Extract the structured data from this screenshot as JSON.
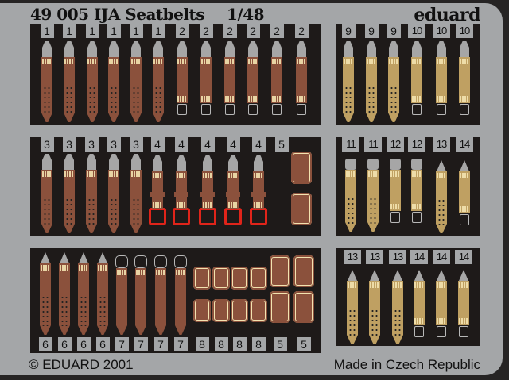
{
  "header": {
    "title": "49 005 IJA Seatbelts",
    "scale": "1/48",
    "brand": "eduard"
  },
  "footer": {
    "copyright": "© EDUARD 2001",
    "origin": "Made in Czech Republic"
  },
  "colors": {
    "plate": "#a4a6a8",
    "panel": "#1e1a19",
    "brown": "#8b513c",
    "tan": "#bfa062",
    "stitch": "#f3e3b0",
    "highlight": "#e0241a"
  },
  "panels": [
    {
      "labels": [
        "1",
        "1",
        "1",
        "1",
        "1",
        "1",
        "2",
        "2",
        "2",
        "2",
        "2",
        "2"
      ]
    },
    {
      "labels": [
        "9",
        "9",
        "9",
        "10",
        "10",
        "10"
      ]
    },
    {
      "labels": [
        "3",
        "3",
        "3",
        "3",
        "3",
        "4",
        "4",
        "4",
        "4",
        "4",
        "5"
      ]
    },
    {
      "labels": [
        "11",
        "11",
        "12",
        "12",
        "13",
        "14"
      ]
    },
    {
      "labels": [
        "6",
        "6",
        "6",
        "6",
        "7",
        "7",
        "7",
        "7",
        "8",
        "8",
        "8",
        "8",
        "5",
        "5"
      ]
    },
    {
      "labels": [
        "13",
        "13",
        "13",
        "14",
        "14",
        "14"
      ]
    }
  ]
}
